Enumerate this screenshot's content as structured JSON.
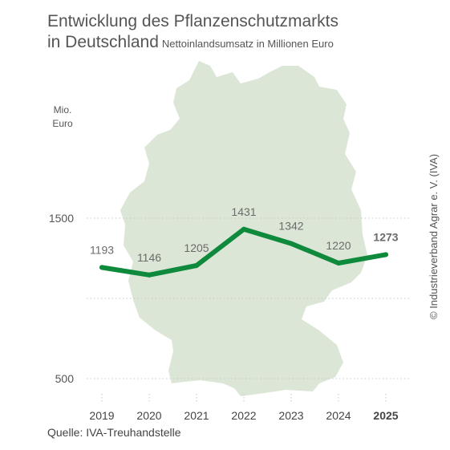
{
  "title_line1": "Entwicklung des Pflanzenschutzmarkts",
  "title_line2": "in Deutschland",
  "subtitle": "Nettoinlandsumsatz in Millionen Euro",
  "source": "Quelle: IVA-Treuhandstelle",
  "copyright": "© Industrieverband Agrar e. V. (IVA)",
  "colors": {
    "line": "#0f8a3c",
    "map": "#dce6d6",
    "grid": "#c8c8c8",
    "text": "#555555"
  },
  "chart_data": {
    "type": "line",
    "title": "Entwicklung des Pflanzenschutzmarkts in Deutschland",
    "subtitle": "Nettoinlandsumsatz in Millionen Euro",
    "ylabel_lines": [
      "Mio.",
      "Euro"
    ],
    "categories": [
      "2019",
      "2020",
      "2021",
      "2022",
      "2023",
      "2024",
      "2025"
    ],
    "values": [
      1193,
      1146,
      1205,
      1431,
      1342,
      1220,
      1273
    ],
    "labels": [
      "1193",
      "1146",
      "1205",
      "1431",
      "1342",
      "1220",
      "1273"
    ],
    "highlight_index": 6,
    "y_ticks": [
      500,
      1500
    ],
    "y_tick_labels": [
      "500",
      "1500"
    ],
    "ylim": [
      500,
      1500
    ],
    "grid": true,
    "background_image": "germany-map"
  }
}
